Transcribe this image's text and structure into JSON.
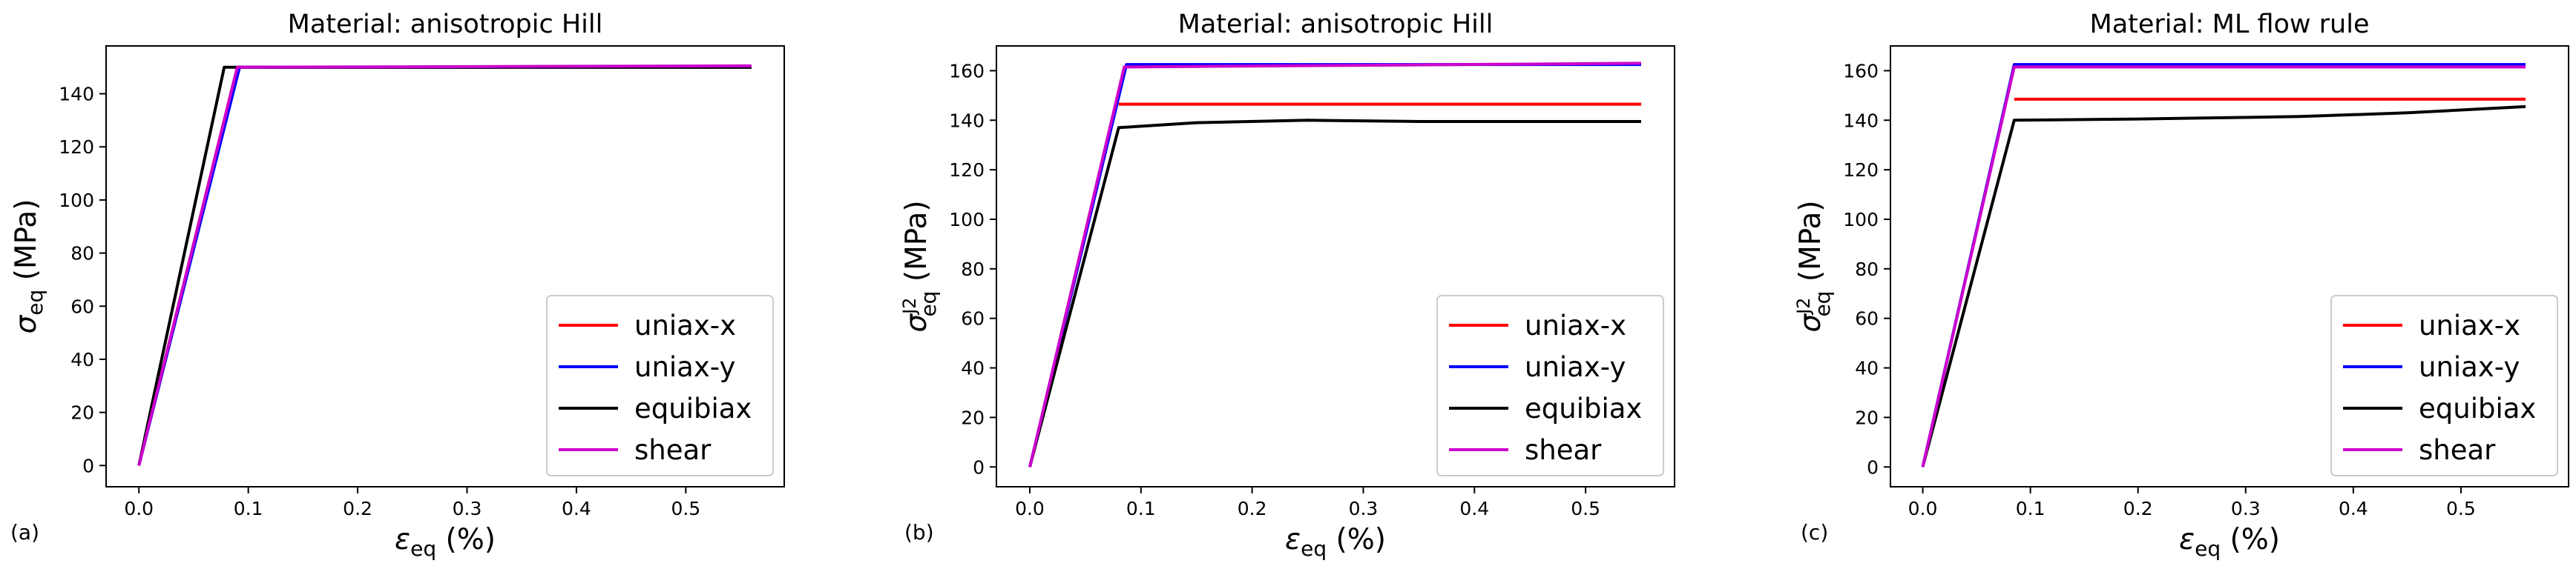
{
  "chart_data": [
    {
      "type": "line",
      "panel": "(a)",
      "title": "Material: anisotropic Hill",
      "xlabel": "ε",
      "xlabel_sub": "eq",
      "xlabel_unit": " (%)",
      "ylabel": "σ",
      "ylabel_sub": "eq",
      "ylabel_sup": "",
      "ylabel_unit": " (MPa)",
      "xlim": [
        -0.03,
        0.59
      ],
      "ylim": [
        -8,
        158
      ],
      "xticks": [
        0.0,
        0.1,
        0.2,
        0.3,
        0.4,
        0.5
      ],
      "xtick_labels": [
        "0.0",
        "0.1",
        "0.2",
        "0.3",
        "0.4",
        "0.5"
      ],
      "yticks": [
        0,
        20,
        40,
        60,
        80,
        100,
        120,
        140
      ],
      "ytick_labels": [
        "0",
        "20",
        "40",
        "60",
        "80",
        "100",
        "120",
        "140"
      ],
      "legend_position": "lower-right",
      "series": [
        {
          "name": "uniax-x",
          "color": "#ff0000",
          "x": [
            0,
            0.09,
            0.56
          ],
          "y": [
            0,
            150,
            150
          ]
        },
        {
          "name": "uniax-y",
          "color": "#0000ff",
          "x": [
            0,
            0.092,
            0.56
          ],
          "y": [
            0,
            150,
            150
          ]
        },
        {
          "name": "equibiax",
          "color": "#000000",
          "x": [
            0,
            0.078,
            0.56
          ],
          "y": [
            0,
            150,
            150
          ]
        },
        {
          "name": "shear",
          "color": "#cc00cc",
          "x": [
            0,
            0.09,
            0.56
          ],
          "y": [
            0,
            150,
            150.5
          ]
        }
      ]
    },
    {
      "type": "line",
      "panel": "(b)",
      "title": "Material: anisotropic Hill",
      "xlabel": "ε",
      "xlabel_sub": "eq",
      "xlabel_unit": " (%)",
      "ylabel": "σ",
      "ylabel_sub": "eq",
      "ylabel_sup": "J2",
      "ylabel_unit": " (MPa)",
      "xlim": [
        -0.03,
        0.58
      ],
      "ylim": [
        -8,
        170
      ],
      "xticks": [
        0.0,
        0.1,
        0.2,
        0.3,
        0.4,
        0.5
      ],
      "xtick_labels": [
        "0.0",
        "0.1",
        "0.2",
        "0.3",
        "0.4",
        "0.5"
      ],
      "yticks": [
        0,
        20,
        40,
        60,
        80,
        100,
        120,
        140,
        160
      ],
      "ytick_labels": [
        "0",
        "20",
        "40",
        "60",
        "80",
        "100",
        "120",
        "140",
        "160"
      ],
      "legend_position": "lower-right",
      "series": [
        {
          "name": "uniax-x",
          "color": "#ff0000",
          "x": [
            0.08,
            0.55
          ],
          "y": [
            146.5,
            146.5
          ]
        },
        {
          "name": "uniax-y",
          "color": "#0000ff",
          "x": [
            0,
            0.087,
            0.55
          ],
          "y": [
            0,
            162.5,
            162.5
          ]
        },
        {
          "name": "equibiax",
          "color": "#000000",
          "x": [
            0,
            0.08,
            0.15,
            0.25,
            0.35,
            0.55
          ],
          "y": [
            0,
            137,
            139,
            140,
            139.5,
            139.5
          ]
        },
        {
          "name": "shear",
          "color": "#cc00cc",
          "x": [
            0,
            0.085,
            0.55
          ],
          "y": [
            0,
            161.5,
            163
          ]
        }
      ]
    },
    {
      "type": "line",
      "panel": "(c)",
      "title": "Material: ML flow rule",
      "xlabel": "ε",
      "xlabel_sub": "eq",
      "xlabel_unit": " (%)",
      "ylabel": "σ",
      "ylabel_sub": "eq",
      "ylabel_sup": "J2",
      "ylabel_unit": " (MPa)",
      "xlim": [
        -0.03,
        0.6
      ],
      "ylim": [
        -8,
        170
      ],
      "xticks": [
        0.0,
        0.1,
        0.2,
        0.3,
        0.4,
        0.5
      ],
      "xtick_labels": [
        "0.0",
        "0.1",
        "0.2",
        "0.3",
        "0.4",
        "0.5"
      ],
      "yticks": [
        0,
        20,
        40,
        60,
        80,
        100,
        120,
        140,
        160
      ],
      "ytick_labels": [
        "0",
        "20",
        "40",
        "60",
        "80",
        "100",
        "120",
        "140",
        "160"
      ],
      "legend_position": "lower-right",
      "series": [
        {
          "name": "uniax-x",
          "color": "#ff0000",
          "x": [
            0.085,
            0.56
          ],
          "y": [
            148.5,
            148.5
          ]
        },
        {
          "name": "uniax-y",
          "color": "#0000ff",
          "x": [
            0,
            0.085,
            0.56
          ],
          "y": [
            0,
            162.5,
            162.5
          ]
        },
        {
          "name": "equibiax",
          "color": "#000000",
          "x": [
            0,
            0.085,
            0.2,
            0.35,
            0.45,
            0.56
          ],
          "y": [
            0,
            140,
            140.5,
            141.5,
            143,
            145.5
          ]
        },
        {
          "name": "shear",
          "color": "#cc00cc",
          "x": [
            0,
            0.085,
            0.56
          ],
          "y": [
            0,
            161.5,
            161.5
          ]
        }
      ]
    }
  ]
}
